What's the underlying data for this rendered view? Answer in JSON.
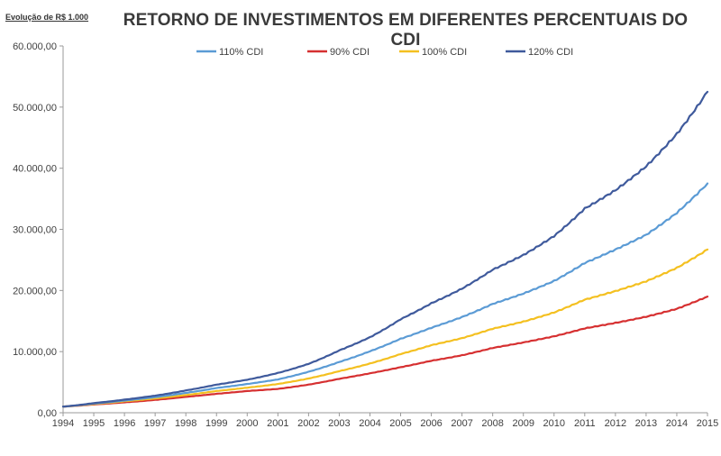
{
  "chart_data": {
    "type": "line",
    "title": "RETORNO DE INVESTIMENTOS EM DIFERENTES PERCENTUAIS DO CDI",
    "subtitle": "Evolução de R$ 1.000",
    "xlabel": "",
    "ylabel": "",
    "ylim": [
      0,
      60000
    ],
    "xlim": [
      1994,
      2015
    ],
    "y_ticks": [
      {
        "value": 0,
        "label": "0,00"
      },
      {
        "value": 10000,
        "label": "10.000,00"
      },
      {
        "value": 20000,
        "label": "20.000,00"
      },
      {
        "value": 30000,
        "label": "30.000,00"
      },
      {
        "value": 40000,
        "label": "40.000,00"
      },
      {
        "value": 50000,
        "label": "50.000,00"
      },
      {
        "value": 60000,
        "label": "60.000,00"
      }
    ],
    "x_ticks": [
      "1994",
      "1995",
      "1996",
      "1997",
      "1998",
      "1999",
      "2000",
      "2001",
      "2002",
      "2003",
      "2004",
      "2005",
      "2006",
      "2007",
      "2008",
      "2009",
      "2010",
      "2011",
      "2012",
      "2013",
      "2014",
      "2015"
    ],
    "grid": false,
    "legend_position": "top",
    "x": [
      1994,
      1995,
      1996,
      1997,
      1998,
      1999,
      2000,
      2001,
      2002,
      2003,
      2004,
      2005,
      2006,
      2007,
      2008,
      2009,
      2010,
      2011,
      2012,
      2013,
      2014,
      2015
    ],
    "series": [
      {
        "name": "110% CDI",
        "color": "#5b9bd5",
        "values": [
          1000,
          1500,
          2000,
          2550,
          3250,
          4050,
          4700,
          5450,
          6700,
          8300,
          10050,
          12100,
          13900,
          15650,
          17800,
          19500,
          21550,
          24500,
          26700,
          29100,
          32700,
          37500
        ]
      },
      {
        "name": "90% CDI",
        "color": "#d63031",
        "values": [
          1000,
          1350,
          1700,
          2100,
          2600,
          3100,
          3550,
          3900,
          4600,
          5550,
          6450,
          7450,
          8500,
          9400,
          10600,
          11500,
          12500,
          13800,
          14700,
          15700,
          17000,
          19000
        ]
      },
      {
        "name": "100% CDI",
        "color": "#f4c020",
        "values": [
          1000,
          1430,
          1880,
          2340,
          2900,
          3550,
          4100,
          4700,
          5600,
          6800,
          8050,
          9600,
          11050,
          12200,
          13750,
          14900,
          16400,
          18500,
          19900,
          21500,
          23700,
          26700
        ]
      },
      {
        "name": "120% CDI",
        "color": "#3f5a9c",
        "values": [
          1000,
          1580,
          2150,
          2800,
          3650,
          4600,
          5400,
          6500,
          8000,
          10200,
          12350,
          15300,
          17900,
          20300,
          23400,
          25800,
          28900,
          33400,
          36400,
          40300,
          45600,
          52500
        ]
      }
    ]
  }
}
